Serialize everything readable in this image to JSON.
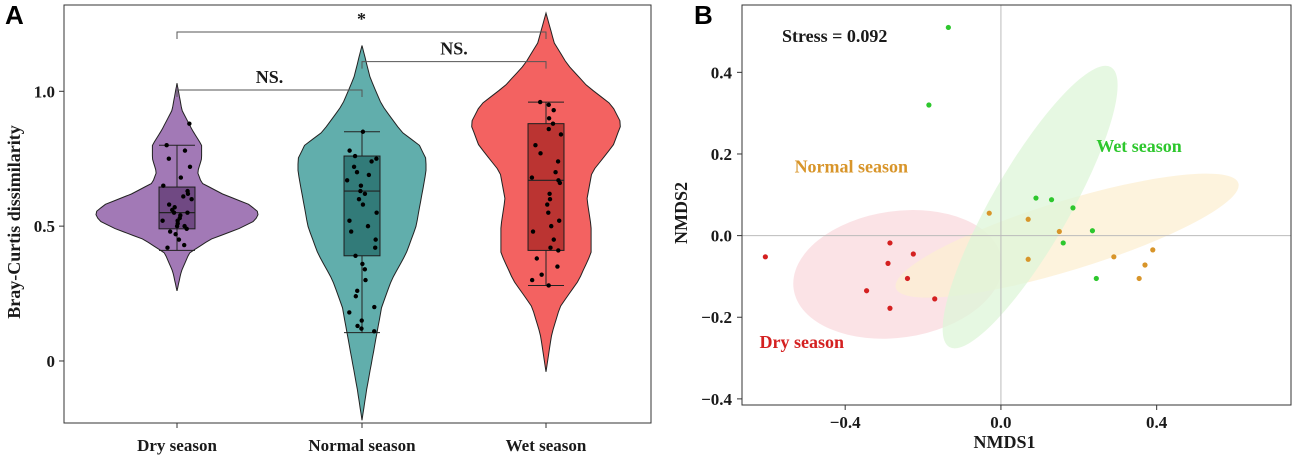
{
  "chart_data": [
    {
      "panel": "A",
      "type": "violin",
      "ylabel": "Bray-Curtis dissimilarity",
      "ylim": [
        -0.23,
        1.32
      ],
      "yticks": [
        0,
        0.5,
        1.0
      ],
      "ytick_labels": [
        "0",
        "0.5",
        "1.0"
      ],
      "categories": [
        "Dry season",
        "Normal season",
        "Wet season"
      ],
      "colors": [
        "#8E5BA6",
        "#3E9C9A",
        "#F0403E"
      ],
      "groups": [
        {
          "name": "Dry season",
          "box": {
            "q1": 0.49,
            "median": 0.55,
            "q3": 0.645,
            "whisker_low": 0.41,
            "whisker_high": 0.8
          },
          "violin": [
            [
              0.26,
              0.0
            ],
            [
              0.33,
              0.05
            ],
            [
              0.4,
              0.15
            ],
            [
              0.45,
              0.4
            ],
            [
              0.49,
              0.75
            ],
            [
              0.52,
              0.95
            ],
            [
              0.55,
              1.0
            ],
            [
              0.58,
              0.88
            ],
            [
              0.62,
              0.55
            ],
            [
              0.66,
              0.3
            ],
            [
              0.7,
              0.25
            ],
            [
              0.75,
              0.3
            ],
            [
              0.8,
              0.3
            ],
            [
              0.86,
              0.18
            ],
            [
              0.93,
              0.06
            ],
            [
              1.03,
              0.0
            ]
          ],
          "points": [
            0.42,
            0.43,
            0.45,
            0.47,
            0.48,
            0.49,
            0.5,
            0.5,
            0.51,
            0.52,
            0.52,
            0.53,
            0.54,
            0.55,
            0.55,
            0.56,
            0.57,
            0.58,
            0.6,
            0.61,
            0.62,
            0.63,
            0.65,
            0.68,
            0.72,
            0.75,
            0.78,
            0.8,
            0.88
          ]
        },
        {
          "name": "Normal season",
          "box": {
            "q1": 0.39,
            "median": 0.63,
            "q3": 0.76,
            "whisker_low": 0.105,
            "whisker_high": 0.85
          },
          "violin": [
            [
              -0.22,
              0.0
            ],
            [
              -0.1,
              0.06
            ],
            [
              0.0,
              0.12
            ],
            [
              0.1,
              0.18
            ],
            [
              0.2,
              0.24
            ],
            [
              0.3,
              0.36
            ],
            [
              0.4,
              0.54
            ],
            [
              0.5,
              0.66
            ],
            [
              0.6,
              0.72
            ],
            [
              0.7,
              0.78
            ],
            [
              0.75,
              0.78
            ],
            [
              0.8,
              0.7
            ],
            [
              0.85,
              0.48
            ],
            [
              0.95,
              0.24
            ],
            [
              1.05,
              0.1
            ],
            [
              1.17,
              0.0
            ]
          ],
          "points": [
            0.11,
            0.12,
            0.13,
            0.15,
            0.18,
            0.2,
            0.24,
            0.26,
            0.3,
            0.34,
            0.36,
            0.39,
            0.42,
            0.45,
            0.48,
            0.5,
            0.52,
            0.55,
            0.58,
            0.6,
            0.62,
            0.63,
            0.65,
            0.67,
            0.69,
            0.7,
            0.72,
            0.74,
            0.75,
            0.76,
            0.78,
            0.85
          ]
        },
        {
          "name": "Wet season",
          "box": {
            "q1": 0.41,
            "median": 0.67,
            "q3": 0.88,
            "whisker_low": 0.28,
            "whisker_high": 0.96
          },
          "violin": [
            [
              -0.04,
              0.0
            ],
            [
              0.1,
              0.07
            ],
            [
              0.2,
              0.17
            ],
            [
              0.3,
              0.4
            ],
            [
              0.4,
              0.55
            ],
            [
              0.5,
              0.55
            ],
            [
              0.6,
              0.5
            ],
            [
              0.7,
              0.56
            ],
            [
              0.8,
              0.82
            ],
            [
              0.88,
              0.92
            ],
            [
              0.95,
              0.8
            ],
            [
              1.02,
              0.5
            ],
            [
              1.1,
              0.26
            ],
            [
              1.18,
              0.1
            ],
            [
              1.29,
              0.0
            ]
          ],
          "points": [
            0.28,
            0.3,
            0.32,
            0.35,
            0.38,
            0.41,
            0.42,
            0.45,
            0.48,
            0.5,
            0.52,
            0.55,
            0.58,
            0.6,
            0.62,
            0.66,
            0.67,
            0.68,
            0.7,
            0.74,
            0.77,
            0.8,
            0.84,
            0.86,
            0.88,
            0.9,
            0.93,
            0.95,
            0.96
          ]
        }
      ],
      "comparisons": [
        {
          "from": "Dry season",
          "to": "Wet season",
          "y": 1.22,
          "label": "*"
        },
        {
          "from": "Dry season",
          "to": "Normal season",
          "y": 1.005,
          "label": "NS."
        },
        {
          "from": "Normal season",
          "to": "Wet season",
          "y": 1.11,
          "label": "NS."
        }
      ]
    },
    {
      "panel": "B",
      "type": "scatter",
      "xlabel": "NMDS1",
      "ylabel": "NMDS2",
      "xlim": [
        -0.665,
        0.745
      ],
      "ylim": [
        -0.415,
        0.565
      ],
      "xticks": [
        -0.4,
        0.0,
        0.4
      ],
      "xtick_labels": [
        "−0.4",
        "0.0",
        "0.4"
      ],
      "yticks": [
        -0.4,
        -0.2,
        0.0,
        0.2,
        0.4
      ],
      "ytick_labels": [
        "−0.4",
        "−0.2",
        "0.0",
        "0.2",
        "0.4"
      ],
      "annotation": "Stress = 0.092",
      "series": [
        {
          "name": "Dry season",
          "color": "#D42020",
          "label_pos": [
            -0.62,
            -0.275
          ],
          "ellipse": {
            "cx": -0.265,
            "cy": -0.095,
            "rx": 0.27,
            "ry": 0.155,
            "angle": -8,
            "fill": "#FADADD"
          },
          "points": [
            [
              -0.605,
              -0.052
            ],
            [
              -0.285,
              -0.018
            ],
            [
              -0.29,
              -0.068
            ],
            [
              -0.225,
              -0.045
            ],
            [
              -0.24,
              -0.105
            ],
            [
              -0.345,
              -0.135
            ],
            [
              -0.17,
              -0.155
            ],
            [
              -0.285,
              -0.178
            ]
          ]
        },
        {
          "name": "Normal season",
          "color": "#D8952A",
          "label_pos": [
            -0.53,
            0.155
          ],
          "ellipse": {
            "cx": 0.17,
            "cy": 0.0,
            "rx": 0.46,
            "ry": 0.085,
            "angle": -17,
            "fill": "#FCEFD2"
          },
          "points": [
            [
              -0.03,
              0.055
            ],
            [
              0.07,
              0.04
            ],
            [
              0.15,
              0.01
            ],
            [
              0.07,
              -0.058
            ],
            [
              0.29,
              -0.052
            ],
            [
              0.37,
              -0.072
            ],
            [
              0.39,
              -0.035
            ],
            [
              0.355,
              -0.105
            ]
          ]
        },
        {
          "name": "Wet season",
          "color": "#2DC72D",
          "label_pos": [
            0.245,
            0.205
          ],
          "ellipse": {
            "cx": 0.075,
            "cy": 0.07,
            "rx": 0.415,
            "ry": 0.095,
            "angle": -60,
            "fill": "#DDF5D8"
          },
          "points": [
            [
              -0.135,
              0.51
            ],
            [
              -0.185,
              0.32
            ],
            [
              0.09,
              0.092
            ],
            [
              0.13,
              0.088
            ],
            [
              0.185,
              0.068
            ],
            [
              0.235,
              0.012
            ],
            [
              0.16,
              -0.018
            ],
            [
              0.245,
              -0.105
            ]
          ]
        }
      ]
    }
  ],
  "labels": {
    "panel_a": "A",
    "panel_b": "B"
  }
}
